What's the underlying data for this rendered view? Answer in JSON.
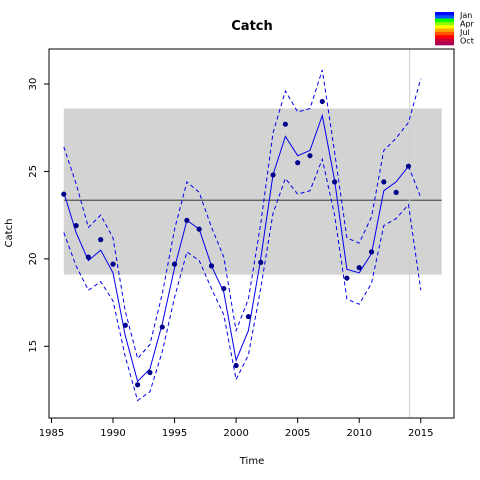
{
  "chart_data": {
    "type": "line",
    "title": "Catch",
    "xlabel": "Time",
    "ylabel": "Catch",
    "xlim": [
      1984.8,
      2017.7
    ],
    "ylim": [
      10.9,
      32.0
    ],
    "x_ticks": [
      1985,
      1990,
      1995,
      2000,
      2005,
      2010,
      2015
    ],
    "y_ticks": [
      15,
      20,
      25,
      30
    ],
    "x_tick_labels": [
      "1985",
      "1990",
      "1995",
      "2000",
      "2005",
      "2010",
      "2015"
    ],
    "y_tick_labels": [
      "15",
      "20",
      "25",
      "30"
    ],
    "band": {
      "x_start": 1986,
      "x_end": 2016.7,
      "y_low": 19.1,
      "y_high": 28.6,
      "color": "#d3d3d3"
    },
    "reference_line": {
      "y": 23.35,
      "color": "#555555"
    },
    "vertical_marker": {
      "x": 2014.1,
      "color": "#cccccc"
    },
    "points": {
      "x": [
        1986,
        1987,
        1988,
        1989,
        1990,
        1991,
        1992,
        1993,
        1994,
        1995,
        1996,
        1997,
        1998,
        1999,
        2000,
        2001,
        2002,
        2003,
        2004,
        2005,
        2006,
        2007,
        2008,
        2009,
        2010,
        2011,
        2012,
        2013,
        2014
      ],
      "y": [
        23.7,
        21.9,
        20.1,
        21.1,
        19.7,
        16.2,
        12.8,
        13.5,
        16.1,
        19.7,
        22.2,
        21.7,
        19.6,
        18.3,
        13.9,
        16.7,
        19.8,
        24.8,
        27.7,
        25.5,
        25.9,
        29.0,
        24.4,
        18.9,
        19.5,
        20.4,
        24.4,
        23.8,
        25.3
      ],
      "color": "#00008b"
    },
    "fit": {
      "x": [
        1986,
        1987,
        1988,
        1989,
        1990,
        1991,
        1992,
        1993,
        1994,
        1995,
        1996,
        1997,
        1998,
        1999,
        2000,
        2001,
        2002,
        2003,
        2004,
        2005,
        2006,
        2007,
        2008,
        2009,
        2010,
        2011,
        2012,
        2013,
        2014
      ],
      "y": [
        23.8,
        21.5,
        19.9,
        20.5,
        19.2,
        15.6,
        13.0,
        13.7,
        16.3,
        19.5,
        22.2,
        21.7,
        19.6,
        18.1,
        14.2,
        15.9,
        20.0,
        24.8,
        27.0,
        25.9,
        26.2,
        28.2,
        24.5,
        19.4,
        19.2,
        20.3,
        23.9,
        24.4,
        25.3
      ],
      "color": "#0000ee"
    },
    "upper_ci": {
      "x": [
        1986,
        1987,
        1988,
        1989,
        1990,
        1991,
        1992,
        1993,
        1994,
        1995,
        1996,
        1997,
        1998,
        1999,
        2000,
        2001,
        2002,
        2003,
        2004,
        2005,
        2006,
        2007,
        2008,
        2009,
        2010,
        2011,
        2012,
        2013,
        2014,
        2015
      ],
      "y": [
        26.4,
        24.3,
        21.8,
        22.5,
        21.2,
        17.0,
        14.3,
        15.1,
        18.0,
        21.7,
        24.4,
        23.8,
        21.8,
        20.1,
        15.9,
        17.7,
        22.0,
        27.2,
        29.6,
        28.4,
        28.6,
        30.8,
        26.1,
        21.2,
        20.9,
        22.4,
        26.2,
        26.9,
        27.8,
        30.3
      ],
      "color": "#0000ee"
    },
    "lower_ci": {
      "x": [
        1986,
        1987,
        1988,
        1989,
        1990,
        1991,
        1992,
        1993,
        1994,
        1995,
        1996,
        1997,
        1998,
        1999,
        2000,
        2001,
        2002,
        2003,
        2004,
        2005,
        2006,
        2007,
        2008,
        2009,
        2010,
        2011,
        2012,
        2013,
        2014,
        2015
      ],
      "y": [
        21.5,
        19.6,
        18.2,
        18.7,
        17.6,
        14.4,
        11.9,
        12.4,
        14.7,
        17.8,
        20.4,
        19.9,
        18.3,
        16.8,
        13.1,
        14.5,
        18.3,
        22.6,
        24.6,
        23.7,
        23.9,
        25.7,
        22.5,
        17.7,
        17.4,
        18.6,
        21.9,
        22.3,
        23.1,
        18.2
      ],
      "color": "#0000ee"
    },
    "forecast": {
      "x": [
        2014,
        2015
      ],
      "y": [
        25.3,
        23.5
      ],
      "color": "#0000ee"
    },
    "legend": {
      "placement": "top-right",
      "items": [
        {
          "label": "Jan",
          "color": "#0000ff"
        },
        {
          "label": "Apr",
          "color": "#00ff00"
        },
        {
          "label": "Jul",
          "color": "#ffaa00"
        },
        {
          "label": "Oct",
          "color": "#cc0033"
        }
      ],
      "gradient": [
        "#0000ff",
        "#0055ff",
        "#00ff00",
        "#88ff00",
        "#ffff00",
        "#ffaa00",
        "#ff5500",
        "#ff0000",
        "#cc0033",
        "#aa0055"
      ]
    }
  }
}
